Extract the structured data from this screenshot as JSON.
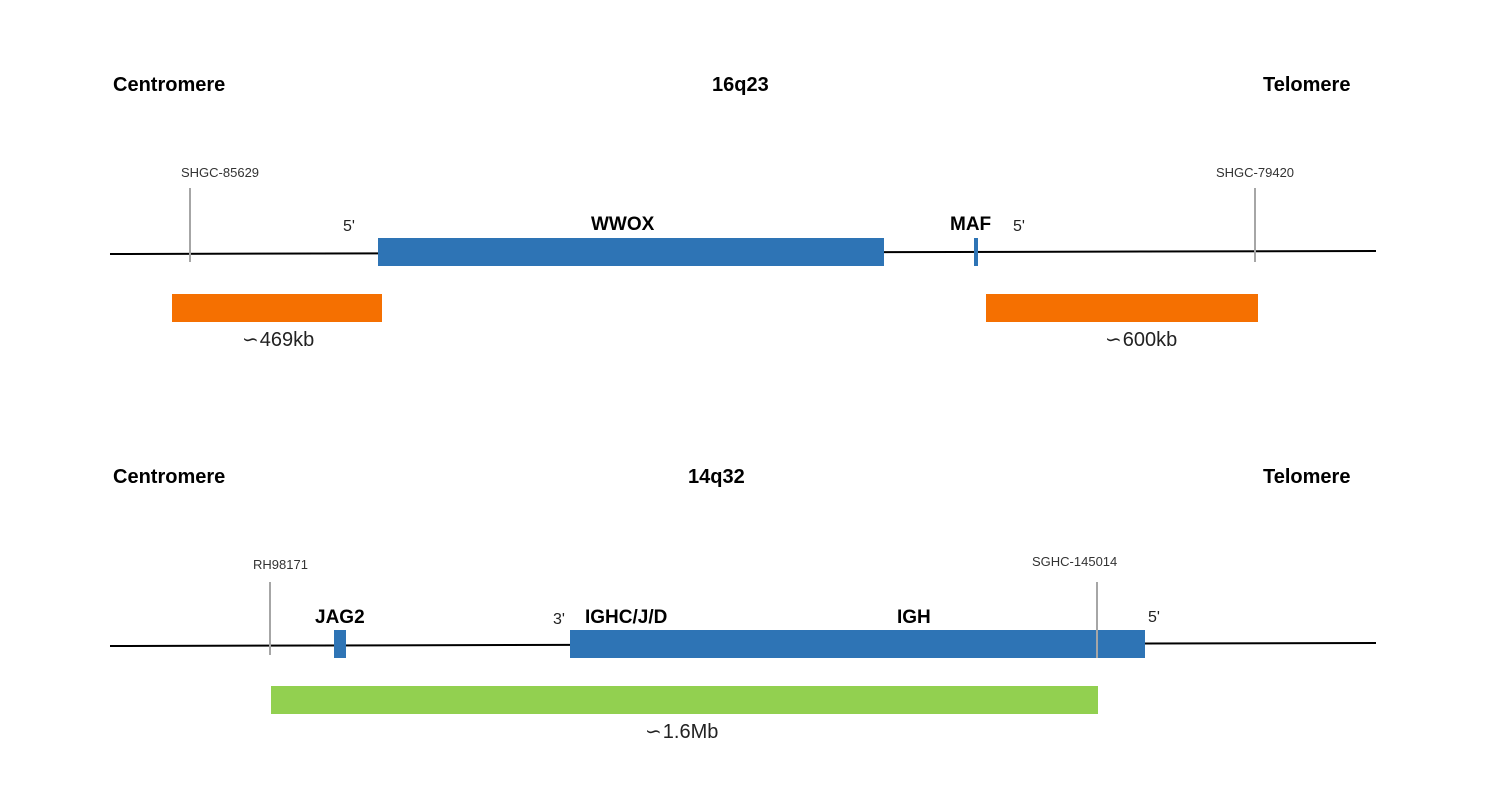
{
  "colors": {
    "gene": "#2e74b5",
    "probe_16q23": "#f57001",
    "probe_14q32": "#92d050",
    "marker_line": "#a6a6a6",
    "chromosome_line": "#000000"
  },
  "panel_16q23": {
    "left_label": "Centromere",
    "title": "16q23",
    "right_label": "Telomere",
    "markers": [
      "SHGC-85629",
      "SHGC-79420"
    ],
    "genes": [
      "WWOX",
      "MAF"
    ],
    "primes": [
      "5'",
      "5'"
    ],
    "probes": [
      {
        "symbol": "∽",
        "size": "469kb"
      },
      {
        "symbol": "∽",
        "size": "600kb"
      }
    ]
  },
  "panel_14q32": {
    "left_label": "Centromere",
    "title": "14q32",
    "right_label": "Telomere",
    "markers": [
      "RH98171",
      "SGHC-145014"
    ],
    "genes": [
      "JAG2",
      "IGHC/J/D",
      "IGH"
    ],
    "primes": [
      "3'",
      "5'"
    ],
    "probes": [
      {
        "symbol": "∽",
        "size": "1.6Mb"
      }
    ]
  }
}
